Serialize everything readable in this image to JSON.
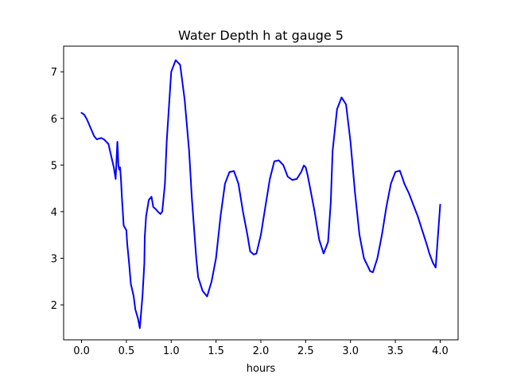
{
  "chart_data": {
    "type": "line",
    "title": "Water Depth h at gauge 5",
    "xlabel": "hours",
    "ylabel": "",
    "xlim": [
      -0.2,
      4.2
    ],
    "ylim": [
      1.25,
      7.55
    ],
    "xticks": [
      0.0,
      0.5,
      1.0,
      1.5,
      2.0,
      2.5,
      3.0,
      3.5,
      4.0
    ],
    "xtick_labels": [
      "0.0",
      "0.5",
      "1.0",
      "1.5",
      "2.0",
      "2.5",
      "3.0",
      "3.5",
      "4.0"
    ],
    "yticks": [
      2,
      3,
      4,
      5,
      6,
      7
    ],
    "ytick_labels": [
      "2",
      "3",
      "4",
      "5",
      "6",
      "7"
    ],
    "grid": false,
    "colors": {
      "line": "#0000ff",
      "axes": "#000000",
      "background": "#ffffff"
    },
    "series": [
      {
        "x": [
          0.0,
          0.03,
          0.06,
          0.1,
          0.14,
          0.17,
          0.2,
          0.22,
          0.25,
          0.3,
          0.33,
          0.36,
          0.38,
          0.4,
          0.405,
          0.41,
          0.42,
          0.43,
          0.44,
          0.45,
          0.47,
          0.5,
          0.51,
          0.53,
          0.55,
          0.58,
          0.6,
          0.63,
          0.65,
          0.68,
          0.7,
          0.705,
          0.72,
          0.75,
          0.78,
          0.8,
          0.83,
          0.85,
          0.88,
          0.9,
          0.93,
          0.95,
          0.98,
          1.0,
          1.05,
          1.1,
          1.15,
          1.2,
          1.23,
          1.26,
          1.28,
          1.3,
          1.35,
          1.4,
          1.45,
          1.5,
          1.55,
          1.6,
          1.65,
          1.7,
          1.75,
          1.8,
          1.85,
          1.88,
          1.92,
          1.95,
          2.0,
          2.05,
          2.1,
          2.15,
          2.2,
          2.25,
          2.3,
          2.35,
          2.4,
          2.45,
          2.48,
          2.5,
          2.52,
          2.55,
          2.6,
          2.65,
          2.7,
          2.75,
          2.78,
          2.8,
          2.85,
          2.9,
          2.95,
          3.0,
          3.05,
          3.1,
          3.15,
          3.2,
          3.22,
          3.25,
          3.3,
          3.35,
          3.4,
          3.45,
          3.5,
          3.55,
          3.58,
          3.6,
          3.65,
          3.7,
          3.75,
          3.8,
          3.85,
          3.88,
          3.92,
          3.95,
          4.0
        ],
        "y": [
          6.12,
          6.08,
          5.98,
          5.8,
          5.62,
          5.55,
          5.57,
          5.58,
          5.55,
          5.45,
          5.2,
          4.95,
          4.7,
          5.5,
          5.3,
          5.0,
          4.9,
          4.95,
          4.7,
          4.3,
          3.7,
          3.6,
          3.3,
          2.9,
          2.45,
          2.2,
          1.9,
          1.7,
          1.5,
          2.2,
          2.9,
          3.45,
          3.9,
          4.25,
          4.32,
          4.1,
          4.05,
          4.0,
          3.95,
          4.0,
          4.6,
          5.5,
          6.4,
          7.0,
          7.25,
          7.15,
          6.4,
          5.3,
          4.3,
          3.5,
          3.0,
          2.6,
          2.3,
          2.18,
          2.5,
          3.0,
          3.9,
          4.6,
          4.85,
          4.87,
          4.6,
          4.0,
          3.5,
          3.15,
          3.08,
          3.1,
          3.5,
          4.1,
          4.7,
          5.08,
          5.1,
          5.0,
          4.75,
          4.68,
          4.7,
          4.85,
          4.99,
          4.95,
          4.8,
          4.5,
          4.0,
          3.4,
          3.1,
          3.35,
          4.2,
          5.3,
          6.2,
          6.45,
          6.3,
          5.5,
          4.4,
          3.5,
          3.0,
          2.8,
          2.72,
          2.7,
          3.0,
          3.5,
          4.1,
          4.6,
          4.85,
          4.88,
          4.72,
          4.6,
          4.4,
          4.15,
          3.9,
          3.6,
          3.3,
          3.1,
          2.9,
          2.8,
          4.15
        ]
      }
    ]
  }
}
